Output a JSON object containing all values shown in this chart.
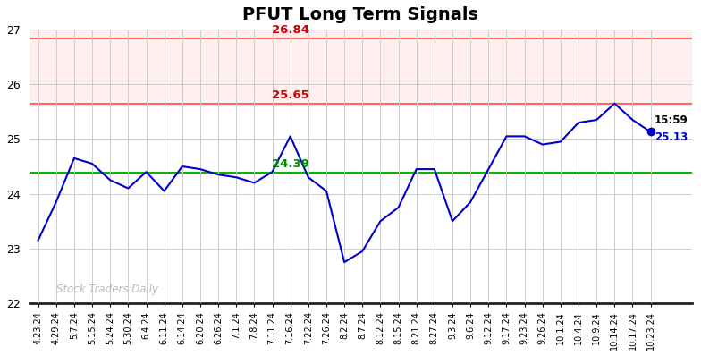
{
  "title": "PFUT Long Term Signals",
  "title_fontsize": 14,
  "line_color": "#0000cc",
  "line_width": 1.5,
  "hline_green": 24.39,
  "hline_red1": 25.65,
  "hline_red2": 26.84,
  "hline_green_color": "#00bb00",
  "hline_red_color": "#ff6666",
  "label_green": "24.39",
  "label_red1": "25.65",
  "label_red2": "26.84",
  "label_green_color": "#008800",
  "label_red_color": "#cc0000",
  "watermark": "Stock Traders Daily",
  "watermark_color": "#bbbbbb",
  "last_time": "15:59",
  "last_value": "25.13",
  "last_dot_color": "#0000cc",
  "ylim": [
    22,
    27
  ],
  "yticks": [
    22,
    23,
    24,
    25,
    26,
    27
  ],
  "background_color": "#ffffff",
  "grid_color": "#cccccc",
  "x_labels": [
    "4.23.24",
    "4.29.24",
    "5.7.24",
    "5.15.24",
    "5.24.24",
    "5.30.24",
    "6.4.24",
    "6.11.24",
    "6.14.24",
    "6.20.24",
    "6.26.24",
    "7.1.24",
    "7.8.24",
    "7.11.24",
    "7.16.24",
    "7.22.24",
    "7.26.24",
    "8.2.24",
    "8.7.24",
    "8.12.24",
    "8.15.24",
    "8.21.24",
    "8.27.24",
    "9.3.24",
    "9.6.24",
    "9.12.24",
    "9.17.24",
    "9.23.24",
    "9.26.24",
    "10.1.24",
    "10.4.24",
    "10.9.24",
    "10.14.24",
    "10.17.24",
    "10.23.24"
  ],
  "y_values": [
    23.15,
    23.85,
    24.65,
    24.55,
    24.25,
    24.1,
    24.4,
    24.05,
    24.5,
    24.45,
    24.35,
    24.3,
    24.2,
    24.4,
    25.05,
    24.3,
    24.05,
    22.75,
    22.95,
    23.5,
    23.75,
    24.45,
    24.45,
    23.5,
    23.85,
    24.45,
    25.05,
    25.05,
    24.9,
    24.95,
    25.3,
    25.35,
    25.65,
    25.35,
    25.13
  ],
  "red_band_color": "#ffeeee",
  "red_band_top_color": "#ffeeee"
}
